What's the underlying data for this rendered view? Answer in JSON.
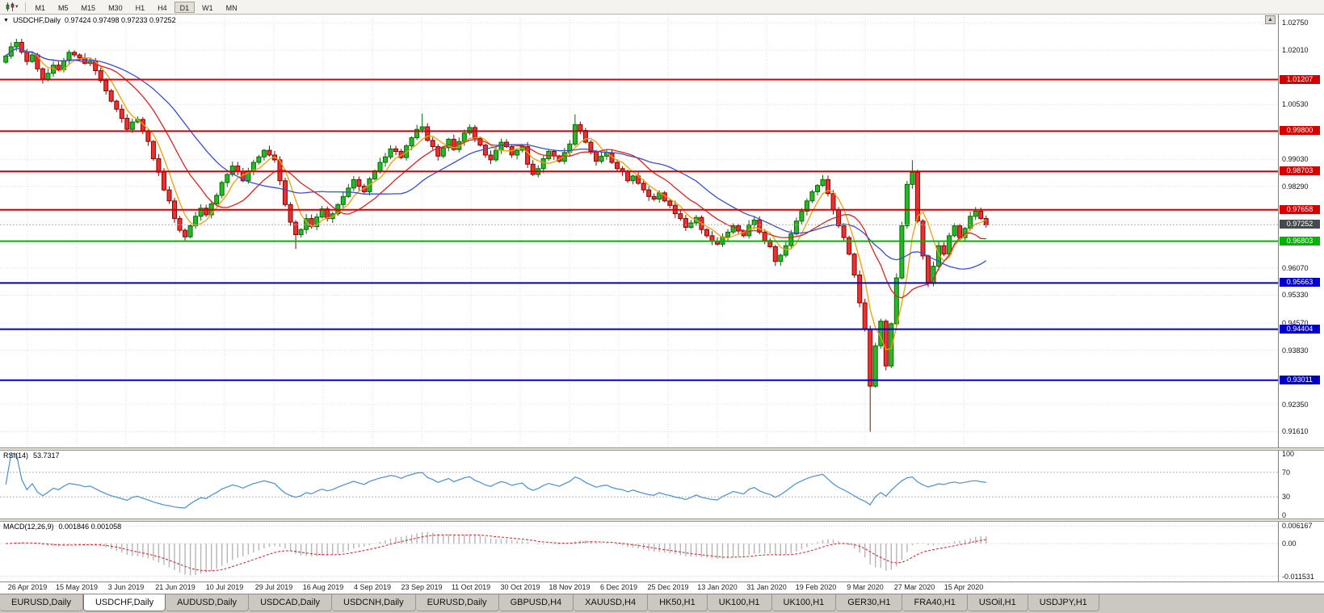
{
  "toolbar": {
    "timeframes": [
      "M1",
      "M5",
      "M15",
      "M30",
      "H1",
      "H4",
      "D1",
      "W1",
      "MN"
    ],
    "active_timeframe": "D1"
  },
  "tabs": {
    "items": [
      "EURUSD,Daily",
      "USDCHF,Daily",
      "AUDUSD,Daily",
      "USDCAD,Daily",
      "USDCNH,Daily",
      "EURUSD,Daily",
      "GBPUSD,H4",
      "XAUUSD,H4",
      "HK50,H1",
      "UK100,H1",
      "UK100,H1",
      "GER30,H1",
      "FRA40,H1",
      "USOil,H1",
      "USDJPY,H1"
    ],
    "active_index": 1
  },
  "chart_data": {
    "type": "candlestick",
    "symbol": "USDCHF,Daily",
    "ohlc_label": "0.97424 0.97498 0.97233 0.97252",
    "open": 0.97424,
    "high": 0.97498,
    "low": 0.97233,
    "close": 0.97252,
    "scale": {
      "min": 0.9118,
      "max": 1.0298
    },
    "y_ticks": [
      "1.02750",
      "1.02010",
      "1.00530",
      "0.99030",
      "0.98290",
      "0.96070",
      "0.95330",
      "0.94570",
      "0.93830",
      "0.92350",
      "0.91610"
    ],
    "price_lines": [
      {
        "label": "1.01207",
        "value": 1.01207,
        "kind": "resistance",
        "color": "#d40000"
      },
      {
        "label": "0.99800",
        "value": 0.998,
        "kind": "resistance",
        "color": "#d40000"
      },
      {
        "label": "0.98703",
        "value": 0.98703,
        "kind": "resistance",
        "color": "#d40000"
      },
      {
        "label": "0.97658",
        "value": 0.97658,
        "kind": "resistance",
        "color": "#d40000"
      },
      {
        "label": "0.96803",
        "value": 0.96803,
        "kind": "support",
        "color": "#00b400"
      },
      {
        "label": "0.95663",
        "value": 0.95663,
        "kind": "support",
        "color": "#0000c8"
      },
      {
        "label": "0.94404",
        "value": 0.94404,
        "kind": "support",
        "color": "#0000c8"
      },
      {
        "label": "0.93011",
        "value": 0.93011,
        "kind": "support",
        "color": "#0000c8"
      }
    ],
    "current_price": {
      "label": "0.97252",
      "value": 0.97252,
      "badge_color": "#46494d",
      "line_color": "#aaaaaa"
    },
    "x_labels": [
      "26 Apr 2019",
      "15 May 2019",
      "3 Jun 2019",
      "21 Jun 2019",
      "10 Jul 2019",
      "29 Jul 2019",
      "16 Aug 2019",
      "4 Sep 2019",
      "23 Sep 2019",
      "11 Oct 2019",
      "30 Oct 2019",
      "18 Nov 2019",
      "6 Dec 2019",
      "25 Dec 2019",
      "13 Jan 2020",
      "31 Jan 2020",
      "19 Feb 2020",
      "9 Mar 2020",
      "27 Mar 2020",
      "15 Apr 2020"
    ],
    "first_open": 1.0168,
    "closes": [
      1.0185,
      1.021,
      1.0222,
      1.0196,
      1.017,
      1.0188,
      1.015,
      1.0122,
      1.0138,
      1.016,
      1.0148,
      1.0172,
      1.0195,
      1.0188,
      1.018,
      1.0165,
      1.017,
      1.0145,
      1.0118,
      1.009,
      1.0062,
      1.004,
      1.0015,
      0.9985,
      1.0005,
      1.0012,
      0.998,
      0.9952,
      0.9905,
      0.9868,
      0.982,
      0.979,
      0.9742,
      0.971,
      0.9692,
      0.9722,
      0.9748,
      0.977,
      0.9752,
      0.9782,
      0.9805,
      0.984,
      0.9862,
      0.9885,
      0.987,
      0.9845,
      0.9872,
      0.9895,
      0.991,
      0.9928,
      0.9915,
      0.9902,
      0.9845,
      0.978,
      0.9732,
      0.9698,
      0.9712,
      0.9742,
      0.972,
      0.9746,
      0.9768,
      0.9742,
      0.9755,
      0.978,
      0.9802,
      0.9825,
      0.9848,
      0.983,
      0.9815,
      0.985,
      0.9872,
      0.9895,
      0.991,
      0.9932,
      0.9925,
      0.9908,
      0.994,
      0.9962,
      0.9985,
      0.9992,
      0.9955,
      0.9938,
      0.9912,
      0.9935,
      0.9958,
      0.993,
      0.9952,
      0.9975,
      0.999,
      0.996,
      0.9942,
      0.9915,
      0.9902,
      0.9928,
      0.995,
      0.9938,
      0.9915,
      0.9928,
      0.9938,
      0.989,
      0.9862,
      0.9878,
      0.9905,
      0.9925,
      0.9912,
      0.9898,
      0.9922,
      0.9945,
      0.9998,
      0.9982,
      0.995,
      0.9925,
      0.9898,
      0.9912,
      0.992,
      0.9895,
      0.9878,
      0.987,
      0.9845,
      0.9858,
      0.9838,
      0.982,
      0.9802,
      0.9795,
      0.9812,
      0.979,
      0.9778,
      0.9755,
      0.9742,
      0.9718,
      0.973,
      0.9745,
      0.9712,
      0.9695,
      0.968,
      0.9672,
      0.9692,
      0.9705,
      0.9722,
      0.9708,
      0.9695,
      0.9725,
      0.9738,
      0.9705,
      0.9682,
      0.9665,
      0.9625,
      0.9642,
      0.9668,
      0.97,
      0.9735,
      0.9762,
      0.979,
      0.9815,
      0.9832,
      0.9848,
      0.981,
      0.9765,
      0.9722,
      0.969,
      0.9645,
      0.9588,
      0.9512,
      0.944,
      0.9285,
      0.9395,
      0.9462,
      0.934,
      0.9455,
      0.958,
      0.9722,
      0.9835,
      0.9868,
      0.9735,
      0.964,
      0.9565,
      0.9612,
      0.9668,
      0.9645,
      0.9695,
      0.9722,
      0.969,
      0.9715,
      0.9748,
      0.9762,
      0.9742,
      0.9725
    ],
    "wick_overrides": {
      "2": {
        "high": 1.0232
      },
      "34": {
        "low": 0.968
      },
      "55": {
        "low": 0.9659
      },
      "79": {
        "high": 1.0028
      },
      "108": {
        "high": 1.0026
      },
      "146": {
        "low": 0.9613
      },
      "164": {
        "low": 0.9161
      },
      "172": {
        "high": 0.9901
      },
      "175": {
        "low": 0.9555
      }
    },
    "moving_averages": [
      {
        "period": 5,
        "color": "#f2a000"
      },
      {
        "period": 13,
        "color": "#dd2222"
      },
      {
        "period": 24,
        "color": "#3a4fd0"
      }
    ],
    "colors": {
      "up_fill": "#28b828",
      "up_stroke": "#056805",
      "down_fill": "#ee3030",
      "down_stroke": "#7d0606",
      "grid": "#dedede"
    },
    "indicators": {
      "rsi": {
        "name": "RSI(14)",
        "value": "53.7317",
        "levels": [
          "100",
          "70",
          "30",
          "0"
        ],
        "level_lines": [
          70,
          30
        ],
        "line_color": "#4d8fce"
      },
      "macd": {
        "name": "MACD(12,26,9)",
        "values": "0.001846 0.001058",
        "axis_labels": [
          "0.006167",
          "0.00",
          "-0.011531"
        ],
        "scale": {
          "min": -0.0125,
          "max": 0.0068
        },
        "histogram_color": "#b6b6b6",
        "signal_color": "#d42020"
      }
    }
  }
}
